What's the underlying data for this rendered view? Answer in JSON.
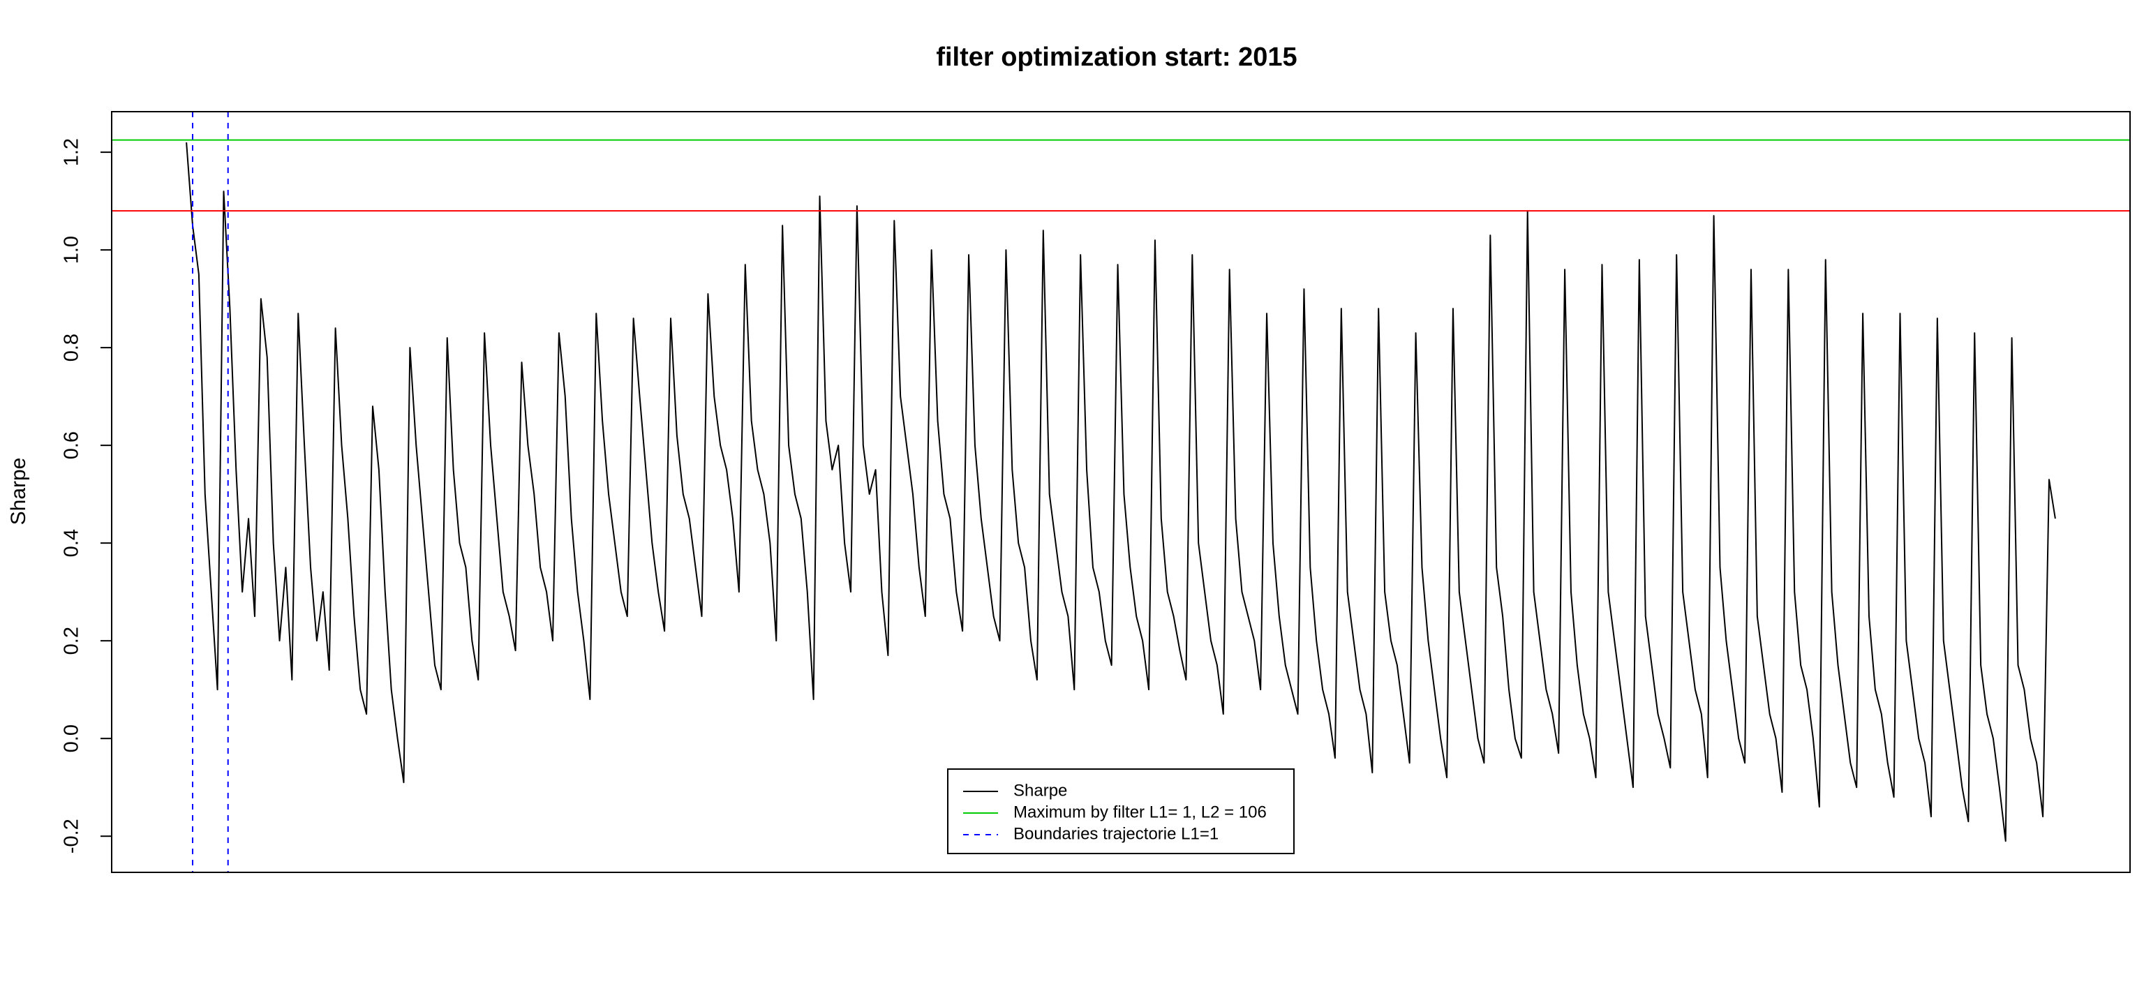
{
  "chart_data": {
    "type": "line",
    "title": "filter optimization start: 2015",
    "ylabel": "Sharpe",
    "xlim": [
      -12.04,
      313.04
    ],
    "ylim": [
      -0.274,
      1.283
    ],
    "yticks": [
      -0.2,
      {
        "value": 0,
        "label": "0.0"
      },
      0.2,
      0.4,
      0.6,
      0.8,
      {
        "value": 1,
        "label": "1.0"
      },
      1.2
    ],
    "series": [
      {
        "name": "Sharpe",
        "color": "#000000",
        "values": [
          1.22,
          1.05,
          0.95,
          0.5,
          0.3,
          0.1,
          1.12,
          0.88,
          0.55,
          0.3,
          0.45,
          0.25,
          0.9,
          0.78,
          0.4,
          0.2,
          0.35,
          0.12,
          0.87,
          0.6,
          0.35,
          0.2,
          0.3,
          0.14,
          0.84,
          0.6,
          0.45,
          0.25,
          0.1,
          0.05,
          0.68,
          0.55,
          0.3,
          0.1,
          0.0,
          -0.09,
          0.8,
          0.6,
          0.45,
          0.3,
          0.15,
          0.1,
          0.82,
          0.55,
          0.4,
          0.35,
          0.2,
          0.12,
          0.83,
          0.6,
          0.45,
          0.3,
          0.25,
          0.18,
          0.77,
          0.6,
          0.5,
          0.35,
          0.3,
          0.2,
          0.83,
          0.7,
          0.45,
          0.3,
          0.2,
          0.08,
          0.87,
          0.65,
          0.5,
          0.4,
          0.3,
          0.25,
          0.86,
          0.7,
          0.55,
          0.4,
          0.3,
          0.22,
          0.86,
          0.62,
          0.5,
          0.45,
          0.35,
          0.25,
          0.91,
          0.7,
          0.6,
          0.55,
          0.45,
          0.3,
          0.97,
          0.65,
          0.55,
          0.5,
          0.4,
          0.2,
          1.05,
          0.6,
          0.5,
          0.45,
          0.3,
          0.08,
          1.11,
          0.65,
          0.55,
          0.6,
          0.4,
          0.3,
          1.09,
          0.6,
          0.5,
          0.55,
          0.3,
          0.17,
          1.06,
          0.7,
          0.6,
          0.5,
          0.35,
          0.25,
          1.0,
          0.65,
          0.5,
          0.45,
          0.3,
          0.22,
          0.99,
          0.6,
          0.45,
          0.35,
          0.25,
          0.2,
          1.0,
          0.55,
          0.4,
          0.35,
          0.2,
          0.12,
          1.04,
          0.5,
          0.4,
          0.3,
          0.25,
          0.1,
          0.99,
          0.55,
          0.35,
          0.3,
          0.2,
          0.15,
          0.97,
          0.5,
          0.35,
          0.25,
          0.2,
          0.1,
          1.02,
          0.45,
          0.3,
          0.25,
          0.18,
          0.12,
          0.99,
          0.4,
          0.3,
          0.2,
          0.15,
          0.05,
          0.96,
          0.45,
          0.3,
          0.25,
          0.2,
          0.1,
          0.87,
          0.4,
          0.25,
          0.15,
          0.1,
          0.05,
          0.92,
          0.35,
          0.2,
          0.1,
          0.05,
          -0.04,
          0.88,
          0.3,
          0.2,
          0.1,
          0.05,
          -0.07,
          0.88,
          0.3,
          0.2,
          0.15,
          0.05,
          -0.05,
          0.83,
          0.35,
          0.2,
          0.1,
          0.0,
          -0.08,
          0.88,
          0.3,
          0.2,
          0.1,
          0.0,
          -0.05,
          1.03,
          0.35,
          0.25,
          0.1,
          0.0,
          -0.04,
          1.08,
          0.3,
          0.2,
          0.1,
          0.05,
          -0.03,
          0.96,
          0.3,
          0.15,
          0.05,
          0.0,
          -0.08,
          0.97,
          0.3,
          0.2,
          0.1,
          0.0,
          -0.1,
          0.98,
          0.25,
          0.15,
          0.05,
          0.0,
          -0.06,
          0.99,
          0.3,
          0.2,
          0.1,
          0.05,
          -0.08,
          1.07,
          0.35,
          0.2,
          0.1,
          0.0,
          -0.05,
          0.96,
          0.25,
          0.15,
          0.05,
          0.0,
          -0.11,
          0.96,
          0.3,
          0.15,
          0.1,
          0.0,
          -0.14,
          0.98,
          0.3,
          0.15,
          0.05,
          -0.05,
          -0.1,
          0.87,
          0.25,
          0.1,
          0.05,
          -0.05,
          -0.12,
          0.87,
          0.2,
          0.1,
          0.0,
          -0.05,
          -0.16,
          0.86,
          0.2,
          0.1,
          0.0,
          -0.1,
          -0.17,
          0.83,
          0.15,
          0.05,
          0.0,
          -0.1,
          -0.21,
          0.82,
          0.15,
          0.1,
          0.0,
          -0.05,
          -0.16,
          0.53,
          0.45
        ]
      }
    ],
    "hlines": [
      {
        "name": "Maximum by filter L1= 1, L2 = 106",
        "color": "#00cc00",
        "value": 1.225
      },
      {
        "color": "#ff0000",
        "value": 1.08
      }
    ],
    "vlines": {
      "name": "Boundaries trajectorie L1=1",
      "color": "#0000ff",
      "dashed": true,
      "values": [
        1,
        6.7
      ]
    }
  }
}
